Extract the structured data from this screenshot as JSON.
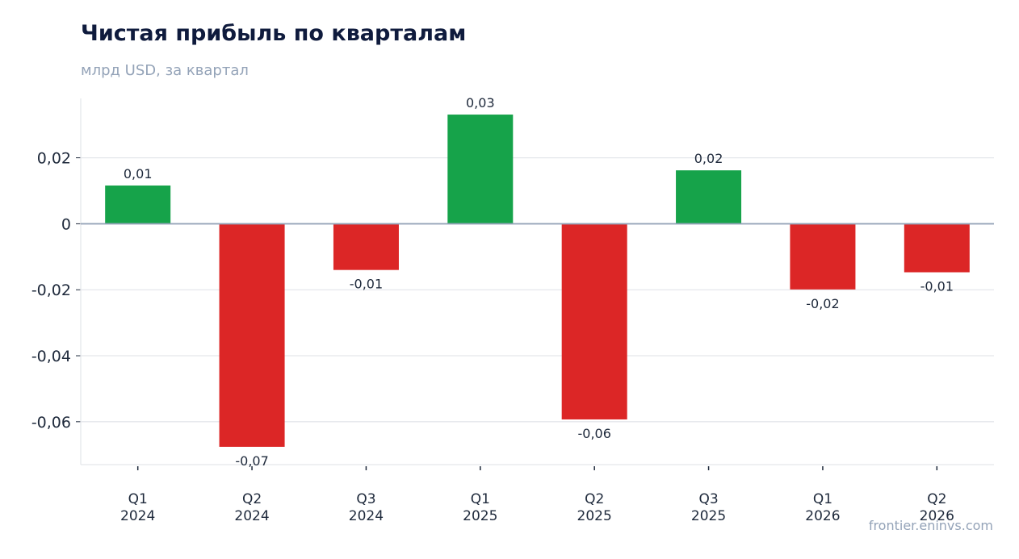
{
  "chart_data": {
    "type": "bar",
    "title": "Чистая прибыль по кварталам",
    "subtitle": "млрд USD, за квартал",
    "categories": [
      [
        "Q1",
        "2024"
      ],
      [
        "Q2",
        "2024"
      ],
      [
        "Q3",
        "2024"
      ],
      [
        "Q1",
        "2025"
      ],
      [
        "Q2",
        "2025"
      ],
      [
        "Q3",
        "2025"
      ],
      [
        "Q1",
        "2026"
      ],
      [
        "Q2",
        "2026"
      ]
    ],
    "values": [
      0.0116,
      -0.0676,
      -0.014,
      0.0331,
      -0.0593,
      0.0162,
      -0.0199,
      -0.0147
    ],
    "data_labels": [
      "0,01",
      "-0,07",
      "-0,01",
      "0,03",
      "-0,06",
      "0,02",
      "-0,02",
      "-0,01"
    ],
    "yticks": [
      0.02,
      0,
      -0.02,
      -0.04,
      -0.06
    ],
    "ytick_labels": [
      "0,02",
      "0",
      "-0,02",
      "-0,04",
      "-0,06"
    ],
    "ylim": [
      -0.073,
      0.038
    ],
    "grid": true,
    "colors": {
      "positive": "#16a34a",
      "negative": "#dc2626",
      "zero_line": "#94a3b8",
      "grid": "#e5e7eb"
    }
  },
  "watermark": "frontier.eninvs.com"
}
